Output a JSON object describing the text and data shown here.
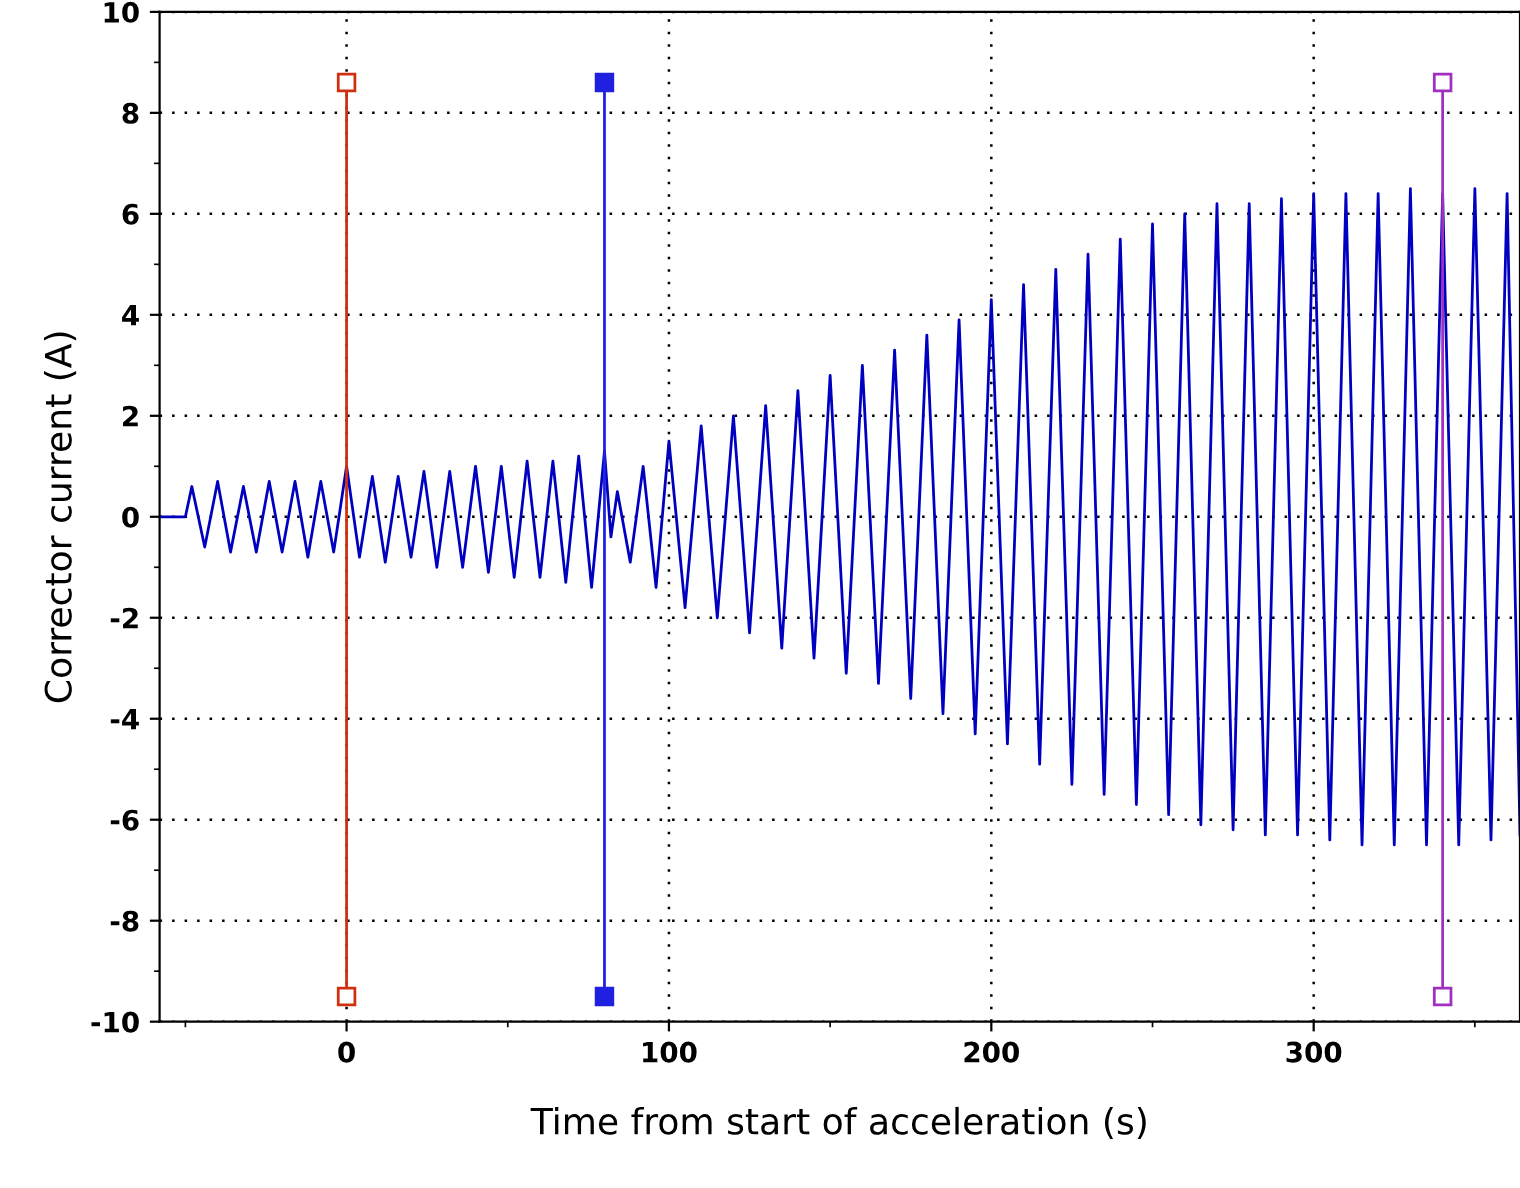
{
  "chart_data": {
    "type": "line",
    "xlabel": "Time from start of acceleration (s)",
    "ylabel": "Corrector current (A)",
    "xlim": [
      -58,
      364
    ],
    "ylim": [
      -10,
      10
    ],
    "xticks": [
      {
        "value": -50,
        "label": null
      },
      0,
      {
        "value": 50,
        "label": null
      },
      100,
      {
        "value": 150,
        "label": null
      },
      200,
      {
        "value": 250,
        "label": null
      },
      300,
      {
        "value": 350,
        "label": null
      }
    ],
    "yticks": [
      -10,
      {
        "value": -9,
        "label": null
      },
      -8,
      {
        "value": -7,
        "label": null
      },
      -6,
      {
        "value": -5,
        "label": null
      },
      -4,
      {
        "value": -3,
        "label": null
      },
      -2,
      {
        "value": -1,
        "label": null
      },
      0,
      {
        "value": 1,
        "label": null
      },
      2,
      {
        "value": 3,
        "label": null
      },
      4,
      {
        "value": 5,
        "label": null
      },
      6,
      {
        "value": 7,
        "label": null
      },
      8,
      {
        "value": 9,
        "label": null
      },
      10
    ],
    "grid": true,
    "legend": false,
    "line_style": "solid",
    "series": [
      {
        "color": "#0000c0",
        "marker": "none",
        "x": [
          -58,
          -50,
          -48,
          -44,
          -40,
          -36,
          -32,
          -28,
          -24,
          -20,
          -16,
          -12,
          -8,
          -4,
          0,
          4,
          8,
          12,
          16,
          20,
          24,
          28,
          32,
          36,
          40,
          44,
          48,
          52,
          56,
          60,
          64,
          68,
          72,
          76,
          80,
          82,
          84,
          88,
          92,
          96,
          100,
          105,
          110,
          115,
          120,
          125,
          130,
          135,
          140,
          145,
          150,
          155,
          160,
          165,
          170,
          175,
          180,
          185,
          190,
          195,
          200,
          205,
          210,
          215,
          220,
          225,
          230,
          235,
          240,
          245,
          250,
          255,
          260,
          265,
          270,
          275,
          280,
          285,
          290,
          295,
          300,
          305,
          310,
          315,
          320,
          325,
          330,
          335,
          340,
          345,
          350,
          355,
          360,
          364
        ],
        "values": [
          0,
          0,
          0.6,
          -0.6,
          0.7,
          -0.7,
          0.6,
          -0.7,
          0.7,
          -0.7,
          0.7,
          -0.8,
          0.7,
          -0.7,
          1.0,
          -0.8,
          0.8,
          -0.9,
          0.8,
          -0.8,
          0.9,
          -1.0,
          0.9,
          -1.0,
          1.0,
          -1.1,
          1.0,
          -1.2,
          1.1,
          -1.2,
          1.1,
          -1.3,
          1.2,
          -1.4,
          1.3,
          -0.4,
          0.5,
          -0.9,
          1.0,
          -1.4,
          1.5,
          -1.8,
          1.8,
          -2.0,
          2.0,
          -2.3,
          2.2,
          -2.6,
          2.5,
          -2.8,
          2.8,
          -3.1,
          3.0,
          -3.3,
          3.3,
          -3.6,
          3.6,
          -3.9,
          3.9,
          -4.3,
          4.3,
          -4.5,
          4.6,
          -4.9,
          4.9,
          -5.3,
          5.2,
          -5.5,
          5.5,
          -5.7,
          5.8,
          -5.9,
          6.0,
          -6.1,
          6.2,
          -6.2,
          6.2,
          -6.3,
          6.3,
          -6.3,
          6.4,
          -6.4,
          6.4,
          -6.5,
          6.4,
          -6.5,
          6.5,
          -6.5,
          6.4,
          -6.5,
          6.5,
          -6.4,
          6.4,
          -6.3
        ]
      },
      {
        "color": "#d03010",
        "marker": "square",
        "x": [
          0,
          0
        ],
        "values": [
          8.6,
          -9.5
        ]
      },
      {
        "color": "#2020e0",
        "marker": "square",
        "x": [
          80,
          80
        ],
        "values": [
          8.6,
          -9.5
        ]
      },
      {
        "color": "#a030c0",
        "marker": "square",
        "x": [
          340,
          340
        ],
        "values": [
          8.6,
          -9.5
        ]
      }
    ]
  }
}
